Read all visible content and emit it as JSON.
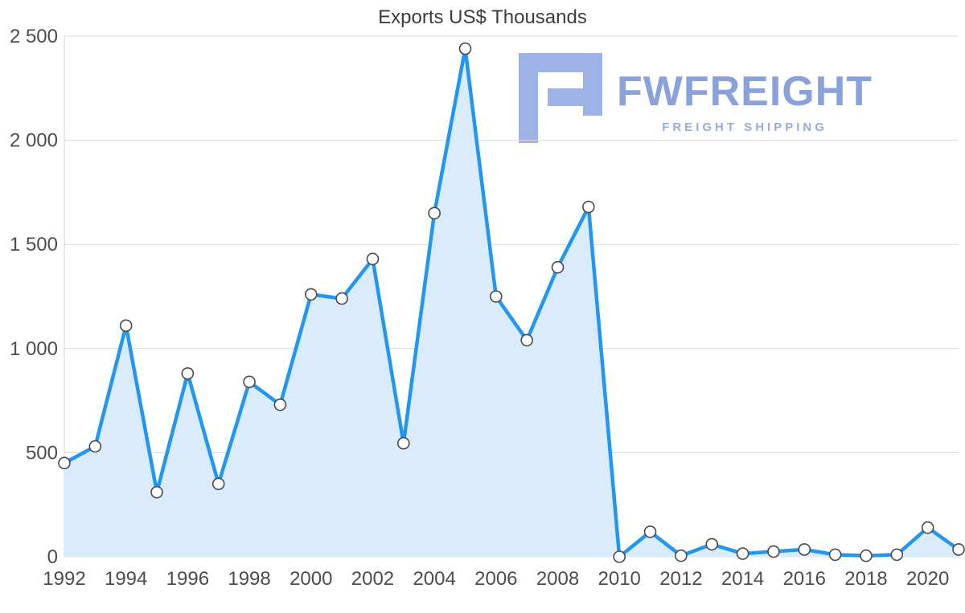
{
  "title": "Exports US$ Thousands",
  "logo": {
    "name": "FWFREIGHT",
    "tagline": "FREIGHT SHIPPING",
    "mark_color": "#9db3e6",
    "text_color": "#8aa2dc"
  },
  "chart_data": {
    "type": "area",
    "title": "Exports US$ Thousands",
    "x": [
      1992,
      1993,
      1994,
      1995,
      1996,
      1997,
      1998,
      1999,
      2000,
      2001,
      2002,
      2003,
      2004,
      2005,
      2006,
      2007,
      2008,
      2009,
      2010,
      2011,
      2012,
      2013,
      2014,
      2015,
      2016,
      2017,
      2018,
      2019,
      2020,
      2021
    ],
    "series": [
      {
        "name": "Exports US$ Thousands",
        "values": [
          450,
          530,
          1110,
          310,
          880,
          350,
          840,
          730,
          1260,
          1240,
          1430,
          545,
          1650,
          2440,
          1250,
          1040,
          1390,
          1680,
          0,
          120,
          5,
          60,
          15,
          25,
          35,
          10,
          5,
          10,
          140,
          35
        ]
      }
    ],
    "x_tick_labels": [
      "1992",
      "1994",
      "1996",
      "1998",
      "2000",
      "2002",
      "2004",
      "2006",
      "2008",
      "2010",
      "2012",
      "2014",
      "2016",
      "2018",
      "2020"
    ],
    "y_ticks": [
      0,
      500,
      1000,
      1500,
      2000,
      2500
    ],
    "y_tick_labels": [
      "0",
      "500",
      "1 000",
      "1 500",
      "2 000",
      "2 500"
    ],
    "ylim": [
      0,
      2500
    ],
    "grid": "horizontal",
    "legend_position": "none",
    "line_color": "#2196f3",
    "fill_color": "#daecfb",
    "grid_color": "#dcdcdc",
    "axis_label_color": "#4d4d4d",
    "marker": "circle-white"
  }
}
